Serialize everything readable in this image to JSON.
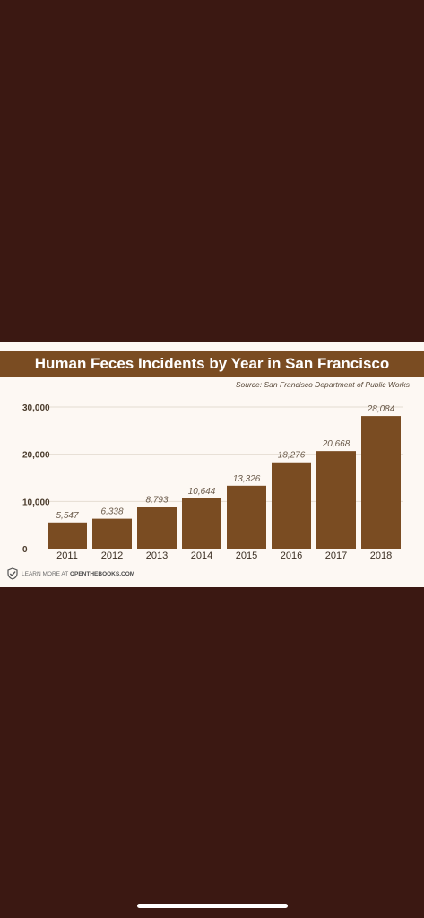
{
  "chart_data": {
    "type": "bar",
    "title": "Human Feces Incidents by Year in San Francisco",
    "subtitle": "Source: San Francisco Department of Public Works",
    "categories": [
      "2011",
      "2012",
      "2013",
      "2014",
      "2015",
      "2016",
      "2017",
      "2018"
    ],
    "values": [
      5547,
      6338,
      8793,
      10644,
      13326,
      18276,
      20668,
      28084
    ],
    "value_labels": [
      "5,547",
      "6,338",
      "8,793",
      "10,644",
      "13,326",
      "18,276",
      "20,668",
      "28,084"
    ],
    "yticks": [
      0,
      10000,
      20000,
      30000
    ],
    "ytick_labels": [
      "0",
      "10,000",
      "20,000",
      "30,000"
    ],
    "ylim": [
      0,
      30000
    ],
    "grid": true,
    "bar_color": "#7a4c22",
    "xlabel": "",
    "ylabel": ""
  },
  "footer": {
    "prefix": "LEARN MORE AT",
    "site": "OPENTHEBOOKS.COM",
    "icon": "check-shield-icon"
  },
  "colors": {
    "background": "#3b1812",
    "title_bar": "#7a4c22",
    "card": "#fdf8f3"
  }
}
